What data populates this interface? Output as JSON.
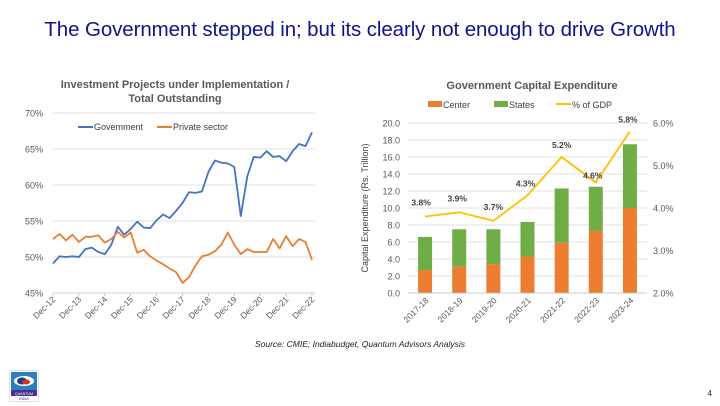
{
  "slide": {
    "title": "The Government stepped in; but its clearly not enough to drive Growth",
    "source": "Source: CMIE; Indiabudget, Quantum Advisors Analysis",
    "page_number": "4",
    "logo": {
      "icon": "quantum-india-logo",
      "text_top": "QUANTUM",
      "text_bottom": "INDIA"
    }
  },
  "chart_data": [
    {
      "type": "line",
      "title": "Investment Projects under Implementation / Total Outstanding",
      "title_lines": [
        "Investment Projects under Implementation /",
        "Total Outstanding"
      ],
      "xlabel": "",
      "ylabel": "",
      "ylim": [
        45,
        70
      ],
      "yticks": [
        "45%",
        "50%",
        "55%",
        "60%",
        "65%",
        "70%"
      ],
      "ytick_values": [
        45,
        50,
        55,
        60,
        65,
        70
      ],
      "xtick_labels": [
        "Dec-12",
        "Dec-13",
        "Dec-14",
        "Dec-15",
        "Dec-16",
        "Dec-17",
        "Dec-18",
        "Dec-19",
        "Dec-20",
        "Dec-21",
        "Dec-22"
      ],
      "points_per_year": 4,
      "grid": true,
      "legend_position": "top",
      "series": [
        {
          "name": "Govemment",
          "color": "#4472c4",
          "values": [
            49.1,
            50.1,
            50.0,
            50.1,
            50.0,
            51.1,
            51.3,
            50.7,
            50.4,
            51.7,
            54.2,
            53.1,
            53.9,
            54.9,
            54.1,
            54.0,
            55.1,
            55.9,
            55.4,
            56.4,
            57.5,
            59.0,
            58.9,
            59.1,
            61.8,
            63.4,
            63.1,
            63.0,
            62.5,
            55.7,
            61.2,
            63.9,
            63.8,
            64.7,
            63.9,
            64.0,
            63.3,
            64.7,
            65.7,
            65.4,
            67.3
          ]
        },
        {
          "name": "Private sector",
          "color": "#ed7d31",
          "values": [
            52.5,
            53.2,
            52.3,
            53.1,
            52.1,
            52.8,
            52.8,
            53.0,
            52.0,
            52.5,
            53.5,
            52.7,
            53.4,
            50.6,
            51.0,
            50.1,
            49.5,
            49.0,
            48.4,
            47.9,
            46.4,
            47.2,
            48.8,
            50.1,
            50.3,
            50.8,
            51.7,
            53.4,
            51.7,
            50.4,
            51.1,
            50.7,
            50.7,
            50.7,
            52.5,
            51.2,
            52.9,
            51.5,
            52.5,
            52.1,
            49.6
          ]
        }
      ]
    },
    {
      "type": "bar",
      "stacked": true,
      "title": "Government Capital Expenditure",
      "categories": [
        "2017-18",
        "2018-19",
        "2019-20",
        "2020-21",
        "2021-22",
        "2022-23",
        "2023-24"
      ],
      "ylabel": "Capital Expenditure (Rs. Trillion)",
      "ylim": [
        0,
        20
      ],
      "yticks": [
        "0.0",
        "2.0",
        "4.0",
        "6.0",
        "8.0",
        "10.0",
        "12.0",
        "14.0",
        "16.0",
        "18.0",
        "20.0"
      ],
      "ytick_values": [
        0,
        2,
        4,
        6,
        8,
        10,
        12,
        14,
        16,
        18,
        20
      ],
      "y2lim": [
        2.0,
        6.0
      ],
      "y2ticks": [
        "2.0%",
        "3.0%",
        "4.0%",
        "5.0%",
        "6.0%"
      ],
      "y2tick_values": [
        2,
        3,
        4,
        5,
        6
      ],
      "grid": true,
      "legend_position": "top",
      "series": [
        {
          "name": "Center",
          "type": "bar",
          "color": "#ed7d31",
          "values": [
            2.7,
            3.1,
            3.4,
            4.3,
            5.9,
            7.3,
            10.0
          ]
        },
        {
          "name": "States",
          "type": "bar",
          "color": "#70ad47",
          "values": [
            3.9,
            4.4,
            4.1,
            4.05,
            6.4,
            5.2,
            7.5
          ]
        },
        {
          "name": "% of GDP",
          "type": "line",
          "axis": "secondary",
          "color": "#ffc000",
          "values": [
            3.8,
            3.9,
            3.7,
            4.3,
            5.2,
            4.6,
            5.8
          ],
          "labels": [
            "3.8%",
            "3.9%",
            "3.7%",
            "4.3%",
            "5.2%",
            "4.6%",
            "5.8%"
          ]
        }
      ]
    }
  ]
}
